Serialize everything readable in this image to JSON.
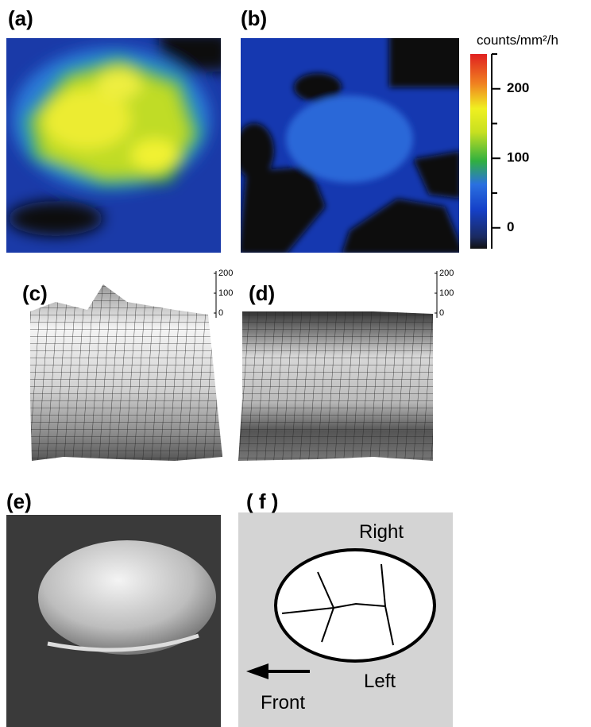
{
  "panels": {
    "a": "(a)",
    "b": "(b)",
    "c": "(c)",
    "d": "(d)",
    "e": "(e)",
    "f": "( f )"
  },
  "colorbar": {
    "title": "counts/mm²/h",
    "lim": [
      -30,
      250
    ],
    "ticks": [
      0,
      100,
      200
    ],
    "minor_ticks": [
      50,
      150,
      250
    ]
  },
  "scale_c": {
    "ticks": [
      0,
      100,
      200
    ]
  },
  "scale_d": {
    "ticks": [
      0,
      100,
      200
    ]
  },
  "diagram": {
    "right": "Right",
    "left": "Left",
    "front": "Front"
  }
}
